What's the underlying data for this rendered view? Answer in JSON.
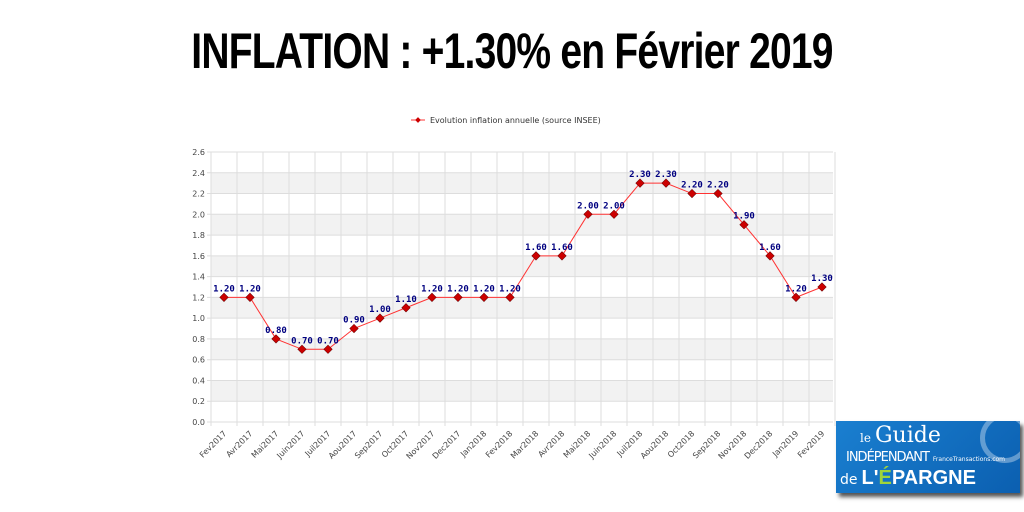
{
  "title": "INFLATION : +1.30% en Février 2019",
  "logo": {
    "text": "le Guide INDÉPENDANT de L'ÉPARGNE FranceTransactions.com"
  },
  "chart_data": {
    "type": "line",
    "title": "",
    "legend": {
      "label": "Evolution inflation annuelle (source INSEE)",
      "position": "top"
    },
    "xlabel": "",
    "ylabel": "",
    "ylim": [
      0,
      2.6
    ],
    "yticks": [
      "0.0",
      "0.2",
      "0.4",
      "0.6",
      "0.8",
      "1.0",
      "1.2",
      "1.4",
      "1.6",
      "1.8",
      "2.0",
      "2.2",
      "2.4",
      "2.6"
    ],
    "grid": true,
    "color": "#ff3333",
    "marker_color": "#cc0000",
    "label_color": "#000080",
    "categories": [
      "Fev2017",
      "Avr2017",
      "Mai2017",
      "Juin2017",
      "Juil2017",
      "Aou2017",
      "Sep2017",
      "Oct2017",
      "Nov2017",
      "Dec2017",
      "Jan2018",
      "Fev2018",
      "Mar2018",
      "Avr2018",
      "Mai2018",
      "Juin2018",
      "Juil2018",
      "Aou2018",
      "Oct2018",
      "Sep2018",
      "Nov2018",
      "Dec2018",
      "Jan2019",
      "Fev2019"
    ],
    "series": [
      {
        "name": "Evolution inflation annuelle (source INSEE)",
        "values": [
          1.2,
          1.2,
          0.8,
          0.7,
          0.7,
          0.9,
          1.0,
          1.1,
          1.2,
          1.2,
          1.2,
          1.2,
          1.6,
          1.6,
          2.0,
          2.0,
          2.3,
          2.3,
          2.2,
          2.2,
          1.9,
          1.6,
          1.2,
          1.3
        ]
      }
    ]
  }
}
